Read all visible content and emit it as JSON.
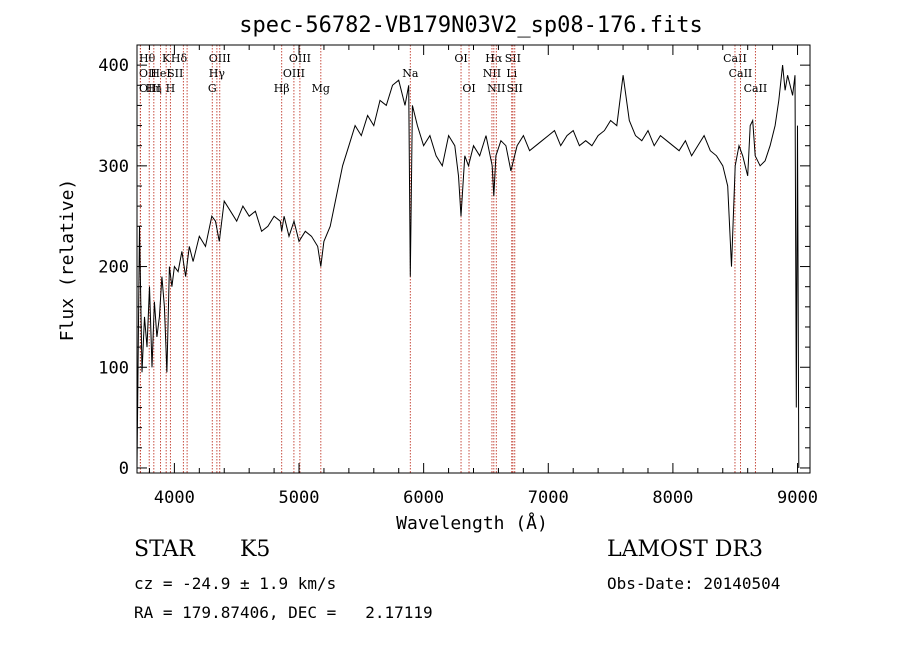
{
  "chart_data": {
    "type": "line",
    "title": "spec-56782-VB179N03V2_sp08-176.fits",
    "xlabel": "Wavelength (Å)",
    "ylabel": "Flux (relative)",
    "xlim": [
      3700,
      9100
    ],
    "ylim": [
      -5,
      420
    ],
    "xticks": [
      4000,
      5000,
      6000,
      7000,
      8000,
      9000
    ],
    "yticks": [
      0,
      100,
      200,
      300,
      400
    ],
    "grid": false,
    "series": [
      {
        "name": "spectrum",
        "x": [
          3700,
          3720,
          3740,
          3760,
          3780,
          3800,
          3820,
          3840,
          3860,
          3880,
          3900,
          3920,
          3940,
          3960,
          3980,
          4000,
          4030,
          4060,
          4090,
          4120,
          4150,
          4200,
          4250,
          4300,
          4330,
          4360,
          4400,
          4450,
          4500,
          4550,
          4600,
          4650,
          4700,
          4750,
          4800,
          4850,
          4861,
          4880,
          4920,
          4960,
          5000,
          5050,
          5100,
          5150,
          5175,
          5200,
          5250,
          5300,
          5350,
          5400,
          5450,
          5500,
          5550,
          5600,
          5650,
          5700,
          5750,
          5800,
          5850,
          5880,
          5893,
          5910,
          5950,
          6000,
          6050,
          6100,
          6150,
          6200,
          6250,
          6280,
          6300,
          6330,
          6360,
          6400,
          6450,
          6500,
          6550,
          6563,
          6580,
          6620,
          6660,
          6700,
          6750,
          6800,
          6850,
          6900,
          6950,
          7000,
          7050,
          7100,
          7150,
          7200,
          7250,
          7300,
          7350,
          7400,
          7450,
          7500,
          7550,
          7600,
          7650,
          7700,
          7750,
          7800,
          7850,
          7900,
          7950,
          8000,
          8050,
          8100,
          8150,
          8200,
          8250,
          8300,
          8350,
          8400,
          8440,
          8470,
          8500,
          8530,
          8560,
          8600,
          8620,
          8640,
          8660,
          8700,
          8740,
          8780,
          8820,
          8850,
          8880,
          8900,
          8920,
          8940,
          8960,
          8980,
          8990,
          9000,
          9010
        ],
        "values": [
          0,
          240,
          95,
          150,
          120,
          180,
          100,
          165,
          130,
          150,
          190,
          160,
          95,
          200,
          180,
          200,
          195,
          215,
          190,
          220,
          205,
          230,
          220,
          250,
          245,
          225,
          265,
          255,
          245,
          260,
          250,
          255,
          235,
          240,
          250,
          245,
          235,
          250,
          230,
          245,
          225,
          235,
          230,
          220,
          200,
          225,
          240,
          270,
          300,
          320,
          340,
          330,
          350,
          340,
          365,
          360,
          380,
          385,
          360,
          380,
          190,
          360,
          340,
          320,
          330,
          310,
          300,
          330,
          320,
          290,
          250,
          310,
          300,
          320,
          310,
          330,
          300,
          270,
          310,
          325,
          320,
          295,
          320,
          330,
          315,
          320,
          325,
          330,
          335,
          320,
          330,
          335,
          320,
          325,
          320,
          330,
          335,
          345,
          340,
          390,
          345,
          330,
          325,
          335,
          320,
          330,
          325,
          320,
          315,
          325,
          310,
          320,
          330,
          315,
          310,
          300,
          280,
          200,
          300,
          320,
          310,
          290,
          340,
          345,
          310,
          300,
          305,
          320,
          340,
          365,
          400,
          375,
          390,
          380,
          370,
          390,
          60,
          340,
          0
        ]
      }
    ],
    "lines": [
      {
        "label": "OII",
        "x": 3727,
        "row": 1,
        "side": "left"
      },
      {
        "label": "OIII",
        "x": 3727,
        "row": 2,
        "side": "left"
      },
      {
        "label": "Hθ",
        "x": 3798,
        "row": 0,
        "side": "left"
      },
      {
        "label": "Hη",
        "x": 3835,
        "row": 2,
        "side": "center"
      },
      {
        "label": "HeI",
        "x": 3889,
        "row": 1,
        "side": "center"
      },
      {
        "label": "K",
        "x": 3934,
        "row": 0,
        "side": "center"
      },
      {
        "label": "H",
        "x": 3968,
        "row": 2,
        "side": "center"
      },
      {
        "label": "SII",
        "x": 4072,
        "row": 1,
        "side": "right"
      },
      {
        "label": "Hδ",
        "x": 4102,
        "row": 0,
        "side": "right"
      },
      {
        "label": "G",
        "x": 4304,
        "row": 2,
        "side": "center"
      },
      {
        "label": "OIII",
        "x": 4364,
        "row": 0,
        "side": "center"
      },
      {
        "label": "Hγ",
        "x": 4341,
        "row": 1,
        "side": "center"
      },
      {
        "label": "Hβ",
        "x": 4861,
        "row": 2,
        "side": "center"
      },
      {
        "label": "OIII",
        "x": 4959,
        "row": 1,
        "side": "center"
      },
      {
        "label": "OIII",
        "x": 5007,
        "row": 0,
        "side": "center"
      },
      {
        "label": "Mg",
        "x": 5175,
        "row": 2,
        "side": "center"
      },
      {
        "label": "Na",
        "x": 5893,
        "row": 1,
        "side": "center"
      },
      {
        "label": "OI",
        "x": 6300,
        "row": 0,
        "side": "center"
      },
      {
        "label": "OI",
        "x": 6364,
        "row": 2,
        "side": "center"
      },
      {
        "label": "NII",
        "x": 6548,
        "row": 1,
        "side": "center"
      },
      {
        "label": "Hα",
        "x": 6563,
        "row": 0,
        "side": "center"
      },
      {
        "label": "NII",
        "x": 6583,
        "row": 2,
        "side": "center"
      },
      {
        "label": "Li",
        "x": 6707,
        "row": 1,
        "side": "center"
      },
      {
        "label": "SII",
        "x": 6716,
        "row": 0,
        "side": "center"
      },
      {
        "label": "SII",
        "x": 6731,
        "row": 2,
        "side": "center"
      },
      {
        "label": "CaII",
        "x": 8498,
        "row": 0,
        "side": "center"
      },
      {
        "label": "CaII",
        "x": 8542,
        "row": 1,
        "side": "center"
      },
      {
        "label": "CaII",
        "x": 8662,
        "row": 2,
        "side": "center"
      }
    ]
  },
  "info": {
    "object_class": "STAR",
    "subclass": "K5",
    "survey": "LAMOST DR3",
    "cz": "cz = -24.9 ± 1.9 km/s",
    "obs_date": "Obs-Date: 20140504",
    "radec": "RA = 179.87406, DEC =   2.17119"
  },
  "colors": {
    "line_marker": "#c0392b",
    "spectrum": "#000000"
  }
}
